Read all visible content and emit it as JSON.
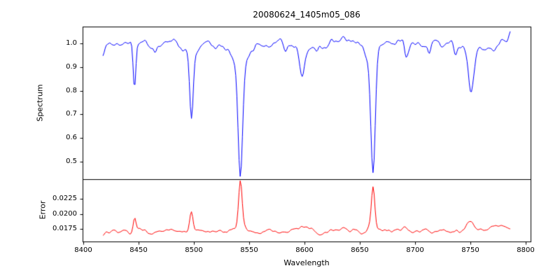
{
  "title": "20080624_1405m05_086",
  "x_axis": {
    "label": "Wavelength",
    "lim": [
      8399.6,
      8804.4
    ],
    "ticks": [
      8400,
      8450,
      8500,
      8550,
      8600,
      8650,
      8700,
      8750,
      8800
    ],
    "tick_labels": [
      "8400",
      "8450",
      "8500",
      "8550",
      "8600",
      "8650",
      "8700",
      "8750",
      "8800"
    ]
  },
  "chart_data": [
    {
      "type": "line",
      "name": "spectrum",
      "ylabel": "Spectrum",
      "color": "#0000ff",
      "legend": "none",
      "grid": false,
      "x_start": 8418,
      "x_end": 8786,
      "x_step": 1,
      "ylim": [
        0.425,
        1.072
      ],
      "yticks": [
        0.5,
        0.6,
        0.7,
        0.8,
        0.9,
        1.0
      ],
      "ytick_labels": [
        "0.5",
        "0.6",
        "0.7",
        "0.8",
        "0.9",
        "1.0"
      ],
      "baseline": 1.0,
      "noise_std": 0.011,
      "noise_seed": 20080624,
      "feature_sign": -1,
      "features": [
        {
          "center": 8446.5,
          "amp": 0.185,
          "width": 1.2
        },
        {
          "center": 8465.0,
          "amp": 0.035,
          "width": 1.5
        },
        {
          "center": 8498.0,
          "amp": 0.3,
          "width": 1.6
        },
        {
          "center": 8498.0,
          "amp": 0.045,
          "width": 5.0
        },
        {
          "center": 8542.1,
          "amp": 0.47,
          "width": 2.0
        },
        {
          "center": 8542.1,
          "amp": 0.07,
          "width": 8.0
        },
        {
          "center": 8582.0,
          "amp": 0.035,
          "width": 1.8
        },
        {
          "center": 8598.0,
          "amp": 0.13,
          "width": 2.2
        },
        {
          "center": 8611.0,
          "amp": 0.035,
          "width": 1.5
        },
        {
          "center": 8662.1,
          "amp": 0.465,
          "width": 1.9
        },
        {
          "center": 8662.1,
          "amp": 0.06,
          "width": 7.0
        },
        {
          "center": 8692.0,
          "amp": 0.06,
          "width": 1.6
        },
        {
          "center": 8713.0,
          "amp": 0.035,
          "width": 1.5
        },
        {
          "center": 8736.0,
          "amp": 0.04,
          "width": 1.8
        },
        {
          "center": 8750.5,
          "amp": 0.155,
          "width": 2.3
        },
        {
          "center": 8750.5,
          "amp": 0.05,
          "width": 6.0
        },
        {
          "center": 8772.0,
          "amp": 0.035,
          "width": 1.8
        }
      ]
    },
    {
      "type": "line",
      "name": "error",
      "ylabel": "Error",
      "color": "#ff0000",
      "legend": "none",
      "grid": false,
      "x_start": 8418,
      "x_end": 8786,
      "x_step": 1,
      "ylim": [
        0.0154,
        0.0258
      ],
      "yticks": [
        0.0175,
        0.02,
        0.0225
      ],
      "ytick_labels": [
        "0.0175",
        "0.0200",
        "0.0225"
      ],
      "baseline": 0.0171,
      "noise_std": 0.00022,
      "noise_seed": 1405086,
      "feature_sign": 1,
      "features": [
        {
          "center": 8446.5,
          "amp": 0.0021,
          "width": 1.2
        },
        {
          "center": 8498.0,
          "amp": 0.0031,
          "width": 1.4
        },
        {
          "center": 8542.1,
          "amp": 0.0078,
          "width": 1.6
        },
        {
          "center": 8542.1,
          "amp": 0.0007,
          "width": 6.0
        },
        {
          "center": 8598.0,
          "amp": 0.0007,
          "width": 5.0
        },
        {
          "center": 8662.1,
          "amp": 0.0065,
          "width": 1.5
        },
        {
          "center": 8662.1,
          "amp": 0.0006,
          "width": 6.0
        },
        {
          "center": 8692.0,
          "amp": 0.0004,
          "width": 3.0
        },
        {
          "center": 8750.5,
          "amp": 0.0013,
          "width": 4.0
        },
        {
          "center": 8780.0,
          "amp": 0.0007,
          "width": 12.0
        }
      ]
    }
  ]
}
